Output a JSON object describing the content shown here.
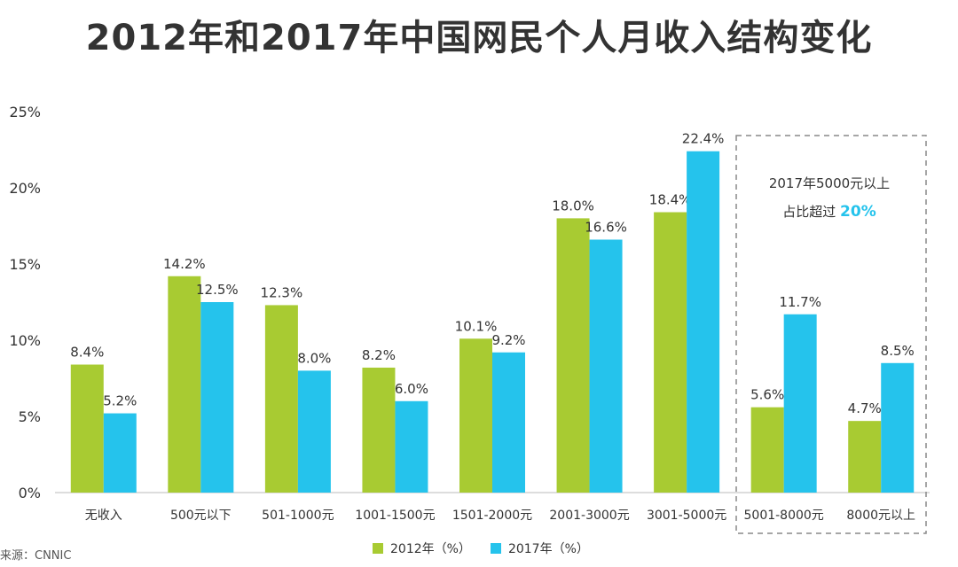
{
  "title": "2012年和2017年中国网民个人月收入结构变化",
  "source": "来源：CNNIC",
  "annotation": {
    "line1": "2017年5000元以上",
    "line2_prefix": "占比超过",
    "line2_highlight": "20%"
  },
  "colors": {
    "series_2012": "#a8cb32",
    "series_2017": "#25c3ec",
    "highlight": "#25c3ec",
    "axis": "#bbbbbb",
    "text": "#333333"
  },
  "chart_data": {
    "type": "bar",
    "categories": [
      "无收入",
      "500元以下",
      "501-1000元",
      "1001-1500元",
      "1501-2000元",
      "2001-3000元",
      "3001-5000元",
      "5001-8000元",
      "8000元以上"
    ],
    "series": [
      {
        "name": "2012年（%）",
        "values": [
          8.4,
          14.2,
          12.3,
          8.2,
          10.1,
          18.0,
          18.4,
          5.6,
          4.7
        ],
        "labels": [
          "8.4%",
          "14.2%",
          "12.3%",
          "8.2%",
          "10.1%",
          "18.0%",
          "18.4%",
          "5.6%",
          "4.7%"
        ]
      },
      {
        "name": "2017年（%）",
        "values": [
          5.2,
          12.5,
          8.0,
          6.0,
          9.2,
          16.6,
          22.4,
          11.7,
          8.5
        ],
        "labels": [
          "5.2%",
          "12.5%",
          "8.0%",
          "6.0%",
          "9.2%",
          "16.6%",
          "22.4%",
          "11.7%",
          "8.5%"
        ]
      }
    ],
    "yticks": [
      "0%",
      "5%",
      "10%",
      "15%",
      "20%",
      "25%"
    ],
    "ylim": [
      0,
      25
    ],
    "grid": false,
    "legend_position": "bottom"
  }
}
